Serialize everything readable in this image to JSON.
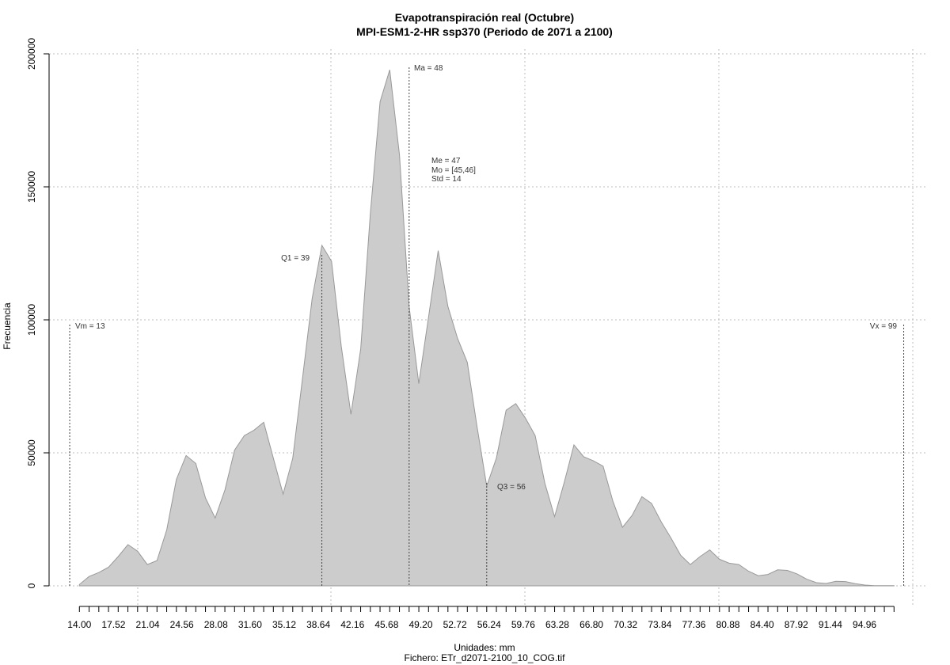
{
  "chart_data": {
    "type": "area",
    "title": "Evapotranspiración real (Octubre)",
    "subtitle": "MPI-ESM1-2-HR ssp370 (Periodo de 2071 a 2100)",
    "xlabel": "Unidades: mm",
    "caption": "Fichero: ETr_d2071-2100_10_COG.tif",
    "ylabel": "Frecuencia",
    "xlim": [
      13,
      99
    ],
    "ylim": [
      0,
      200000
    ],
    "grid": true,
    "fill_color": "#cccccc",
    "line_color": "#999999",
    "x_ticks": [
      "14.00",
      "17.52",
      "21.04",
      "24.56",
      "28.08",
      "31.60",
      "35.12",
      "38.64",
      "42.16",
      "45.68",
      "49.20",
      "52.72",
      "56.24",
      "59.76",
      "63.28",
      "66.80",
      "70.32",
      "73.84",
      "77.36",
      "80.88",
      "84.40",
      "87.92",
      "91.44",
      "94.96"
    ],
    "y_ticks": [
      "0",
      "50000",
      "100000",
      "150000",
      "200000"
    ],
    "x": [
      14,
      15,
      16,
      17,
      18,
      19,
      20,
      21,
      22,
      23,
      24,
      25,
      26,
      27,
      28,
      29,
      30,
      31,
      32,
      33,
      34,
      35,
      36,
      37,
      38,
      39,
      40,
      41,
      42,
      43,
      44,
      45,
      46,
      47,
      48,
      49,
      50,
      51,
      52,
      53,
      54,
      55,
      56,
      57,
      58,
      59,
      60,
      61,
      62,
      63,
      64,
      65,
      66,
      67,
      68,
      69,
      70,
      71,
      72,
      73,
      74,
      75,
      76,
      77,
      78,
      79,
      80,
      81,
      82,
      83,
      84,
      85,
      86,
      87,
      88,
      89,
      90,
      91,
      92,
      93,
      94,
      95,
      96,
      97,
      98
    ],
    "y": [
      500,
      3500,
      5000,
      7000,
      11000,
      15500,
      13000,
      8000,
      9500,
      21000,
      40000,
      49000,
      46000,
      33000,
      25500,
      36000,
      51000,
      56500,
      58500,
      61500,
      48000,
      34500,
      48000,
      78000,
      108000,
      128000,
      122000,
      90000,
      64500,
      89000,
      140000,
      182000,
      194000,
      162000,
      105000,
      76000,
      101000,
      126000,
      105000,
      93000,
      84000,
      60000,
      37500,
      48000,
      66000,
      68500,
      63000,
      56500,
      38500,
      26000,
      39000,
      53000,
      48500,
      47000,
      45000,
      32000,
      22000,
      26500,
      33500,
      31000,
      24000,
      18000,
      11500,
      8000,
      11000,
      13500,
      10000,
      8500,
      8000,
      5500,
      3800,
      4300,
      6000,
      5800,
      4500,
      2500,
      1200,
      900,
      1700,
      1600,
      800,
      300,
      100,
      100,
      50
    ],
    "annotations": {
      "vm": "Vm = 13",
      "q1": "Q1 = 39",
      "ma": "Ma = 48",
      "me": "Me = 47",
      "mo": "Mo = [45,46]",
      "std": "Std = 14",
      "q3": "Q3 = 56",
      "vx": "Vx = 99"
    },
    "markers": {
      "vm": 13,
      "q1": 39,
      "ma": 48,
      "q3": 56,
      "vx": 99
    }
  }
}
